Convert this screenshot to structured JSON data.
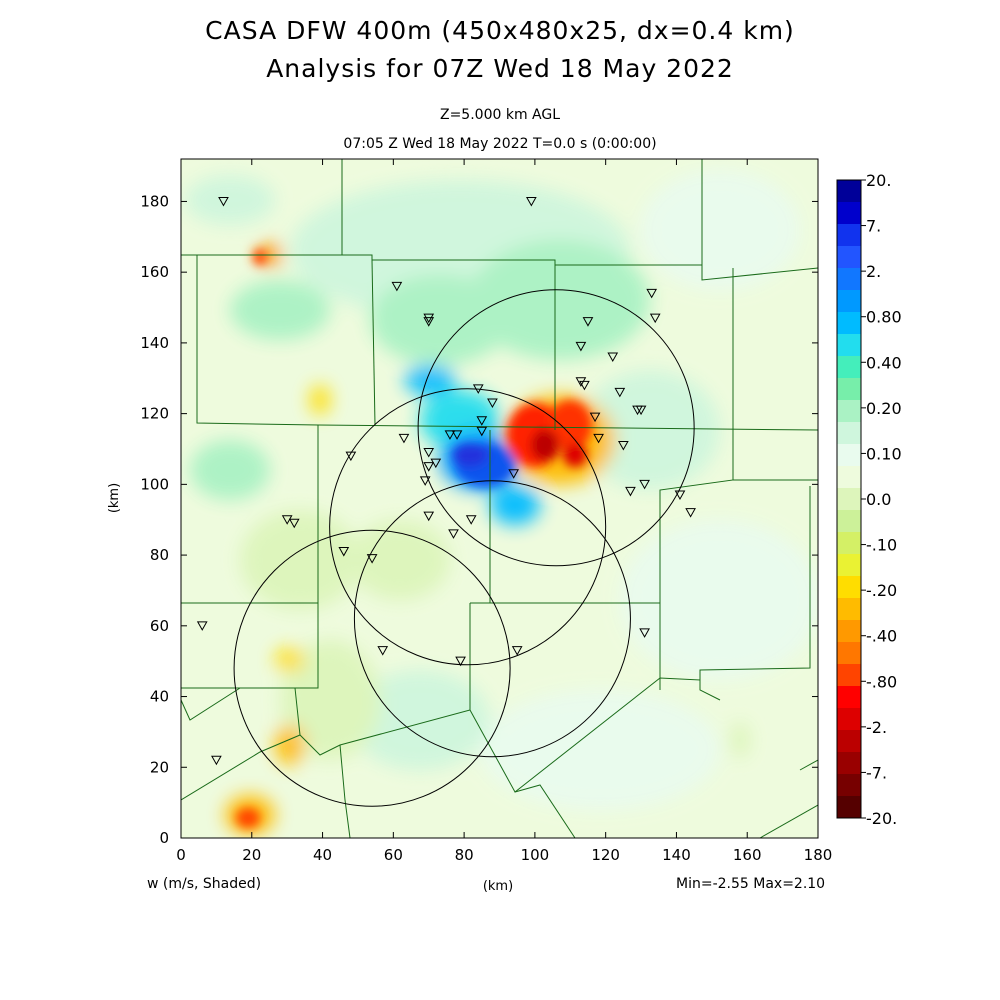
{
  "title_line1": "CASA DFW 400m (450x480x25, dx=0.4 km)",
  "title_line2": "Analysis for 07Z Wed 18 May 2022",
  "level_label": "Z=5.000 km AGL",
  "time_label": "07:05 Z Wed 18 May 2022    T=0.0 s (0:00:00)",
  "field_label": "w (m/s, Shaded)",
  "minmax_label": "Min=-2.55 Max=2.10",
  "chart_data": {
    "type": "heatmap",
    "xlabel": "(km)",
    "ylabel": "(km)",
    "xlim": [
      0,
      180
    ],
    "ylim": [
      0,
      192
    ],
    "xticks": [
      0,
      20,
      40,
      60,
      80,
      100,
      120,
      140,
      160,
      180
    ],
    "yticks": [
      0,
      20,
      40,
      60,
      80,
      100,
      120,
      140,
      160,
      180
    ],
    "colorbar": {
      "labels": [
        "20.",
        "7.",
        "2.",
        "0.80",
        "0.40",
        "0.20",
        "0.10",
        "0.0",
        "-.10",
        "-.20",
        "-.40",
        "-.80",
        "-2.",
        "-7.",
        "-20."
      ],
      "colors": [
        "#000099",
        "#0000cc",
        "#1133ee",
        "#2255ff",
        "#1177ff",
        "#0099ff",
        "#00bbff",
        "#22ddee",
        "#44eebb",
        "#77eeaa",
        "#aaf2c4",
        "#cff6dd",
        "#e9fbee",
        "#eefbdd",
        "#ddf5bb",
        "#ccf199",
        "#d4f066",
        "#eaf233",
        "#ffdd00",
        "#ffbb00",
        "#ff9900",
        "#ff7700",
        "#ff4400",
        "#ff0000",
        "#dd0000",
        "#bb0000",
        "#990000",
        "#770000",
        "#550000"
      ]
    },
    "updraft_core": {
      "x": 103,
      "y": 112,
      "w_max": 2.1
    },
    "downdraft_core": {
      "x": 87,
      "y": 104,
      "w_min": -2.55
    },
    "radar_circles": [
      {
        "x": 106,
        "y": 116,
        "r_km": 39
      },
      {
        "x": 81,
        "y": 88,
        "r_km": 39
      },
      {
        "x": 88,
        "y": 62,
        "r_km": 39
      },
      {
        "x": 54,
        "y": 48,
        "r_km": 39
      }
    ],
    "stations": [
      [
        12,
        180
      ],
      [
        99,
        180
      ],
      [
        61,
        156
      ],
      [
        70,
        147
      ],
      [
        70,
        146
      ],
      [
        115,
        146
      ],
      [
        133,
        154
      ],
      [
        134,
        147
      ],
      [
        113,
        139
      ],
      [
        122,
        136
      ],
      [
        113,
        129
      ],
      [
        114,
        128
      ],
      [
        124,
        126
      ],
      [
        84,
        127
      ],
      [
        88,
        123
      ],
      [
        117,
        119
      ],
      [
        85,
        118
      ],
      [
        78,
        114
      ],
      [
        85,
        115
      ],
      [
        63,
        113
      ],
      [
        48,
        108
      ],
      [
        70,
        109
      ],
      [
        72,
        106
      ],
      [
        70,
        105
      ],
      [
        76,
        114
      ],
      [
        69,
        101
      ],
      [
        118,
        113
      ],
      [
        125,
        111
      ],
      [
        129,
        121
      ],
      [
        130,
        121
      ],
      [
        127,
        98
      ],
      [
        131,
        100
      ],
      [
        141,
        97
      ],
      [
        144,
        92
      ],
      [
        30,
        90
      ],
      [
        32,
        89
      ],
      [
        70,
        91
      ],
      [
        82,
        90
      ],
      [
        77,
        86
      ],
      [
        46,
        81
      ],
      [
        54,
        79
      ],
      [
        94,
        103
      ],
      [
        6,
        60
      ],
      [
        57,
        53
      ],
      [
        79,
        50
      ],
      [
        95,
        53
      ],
      [
        131,
        58
      ],
      [
        10,
        22
      ]
    ],
    "terrain_region": "Dallas-Fort Worth area county boundaries"
  }
}
